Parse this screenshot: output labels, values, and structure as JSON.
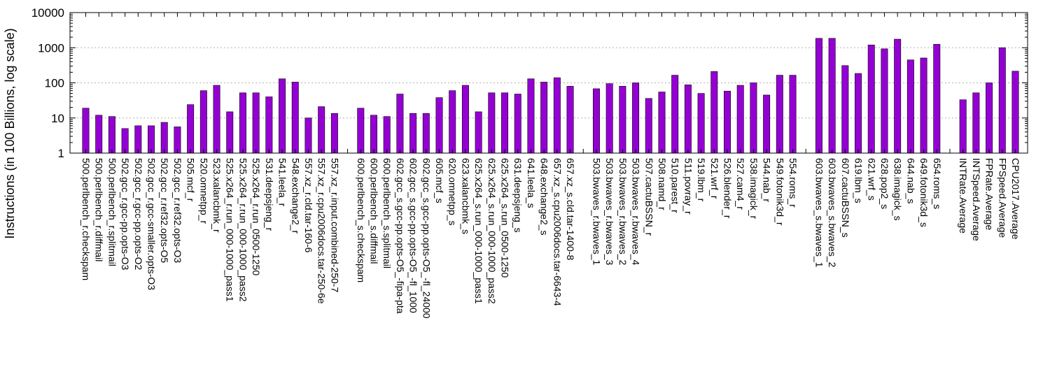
{
  "chart_data": {
    "type": "bar",
    "ylabel": "Instructions (in 100 Billions, log scale)",
    "y_scale": "log",
    "ylim": [
      1,
      10000
    ],
    "yticks": [
      1,
      10,
      100,
      1000,
      10000
    ],
    "ytick_labels": [
      "1",
      "10",
      "100",
      "1000",
      "10000"
    ],
    "grid": "horizontal dotted lines at major y ticks",
    "bar_color": "#9400d3",
    "groups": [
      {
        "categories": [
          "500.perlbench_r.checkspam",
          "500.perlbench_r.diffmail",
          "500.perlbench_r.splitmail",
          "502.gcc_r.gcc-pp.opts-O3",
          "502.gcc_r.gcc-pp.opts-O2",
          "502.gcc_r.gcc-smaller.opts-O3",
          "502.gcc_r.ref32.opts-O5",
          "502.gcc_r.ref32.opts-O3",
          "505.mcf_r",
          "520.omnetpp_r",
          "523.xalancbmk_r",
          "525.x264_r.run_000-1000_pass1",
          "525.x264_r.run_000-1000_pass2",
          "525.x264_r.run_0500-1250",
          "531.deepsjeng_r",
          "541.leela_r",
          "548.exchange2_r",
          "557.xz_r.cld.tar-160-6",
          "557.xz_r.cpu2006docs.tar-250-6e",
          "557.xz_r.input.combined-250-7"
        ],
        "values": [
          19,
          12,
          11,
          5,
          6,
          6,
          7.5,
          5.6,
          24,
          60,
          85,
          15,
          52,
          52,
          40,
          130,
          105,
          10,
          21,
          13.5
        ]
      },
      {
        "categories": [
          "600.perlbench_s.checkspam",
          "600.perlbench_s.diffmail",
          "600.perlbench_s.splitmail",
          "602.gcc_s.gcc-pp.opts-O5_-fipa-pta",
          "602.gcc_s.gcc-pp.opts-O5_-fl_1000",
          "602.gcc_s.gcc-pp.opts-O5_-fl_24000",
          "605.mcf_s",
          "620.omnetpp_s",
          "623.xalancbmk_s",
          "625.x264_s.run_000-1000_pass1",
          "625.x264_s.run_000-1000_pass2",
          "625.x264_s.run_0500-1250",
          "631.deepsjeng_s",
          "641.leela_s",
          "648.exchange2_s",
          "657.xz_s.cpu2006docs.tar-6643-4",
          "657.xz_s.cld.tar-1400-8"
        ],
        "values": [
          19,
          12,
          11,
          48,
          13.5,
          13.5,
          38,
          60,
          85,
          15,
          52,
          52,
          48,
          130,
          105,
          140,
          80
        ]
      },
      {
        "categories": [
          "503.bwaves_r.bwaves_1",
          "503.bwaves_r.bwaves_3",
          "503.bwaves_r.bwaves_2",
          "503.bwaves_r.bwaves_4",
          "507.cactuBSSN_r",
          "508.namd_r",
          "510.parest_r",
          "511.povray_r",
          "519.lbm_r",
          "521.wrf_r",
          "526.blender_r",
          "527.cam4_r",
          "538.imagick_r",
          "544.nab_r",
          "549.fotonik3d_r",
          "554.roms_r"
        ],
        "values": [
          68,
          95,
          80,
          100,
          36,
          55,
          165,
          88,
          50,
          210,
          58,
          85,
          100,
          45,
          165,
          165
        ]
      },
      {
        "categories": [
          "603.bwaves_s.bwaves_1",
          "603.bwaves_s.bwaves_2",
          "607.cactuBSSN_s",
          "619.lbm_s",
          "621.wrf_s",
          "628.pop2_s",
          "638.imagick_s",
          "644.nab_s",
          "649.fotonik3d_s",
          "654.roms_s"
        ],
        "values": [
          1850,
          1850,
          310,
          185,
          1200,
          930,
          1750,
          450,
          510,
          1250
        ]
      },
      {
        "categories": [
          "INTRate.Average",
          "INTSpeed.Average",
          "FPRate.Average",
          "FPSpeed.Average",
          "CPU2017.Average"
        ],
        "values": [
          33,
          52,
          100,
          1000,
          215
        ]
      }
    ]
  }
}
